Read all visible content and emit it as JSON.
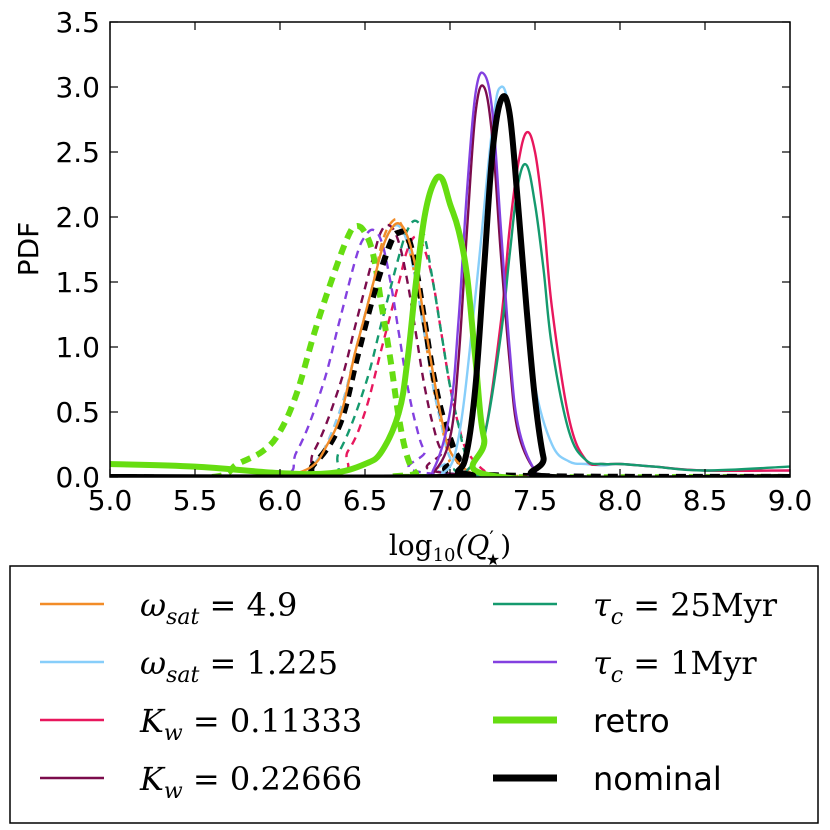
{
  "chart_data": {
    "type": "line",
    "title": "",
    "xlabel": "log10(Q'★)",
    "xlabel_parts": {
      "base": "log",
      "sub": "10",
      "open": "(Q",
      "prime": "′",
      "star": "★",
      "close": ")"
    },
    "ylabel": "PDF",
    "xlim": [
      5.0,
      9.0
    ],
    "ylim": [
      0.0,
      3.5
    ],
    "xticks": [
      "5.0",
      "5.5",
      "6.0",
      "6.5",
      "7.0",
      "7.5",
      "8.0",
      "8.5",
      "9.0"
    ],
    "yticks": [
      "0.0",
      "0.5",
      "1.0",
      "1.5",
      "2.0",
      "2.5",
      "3.0",
      "3.5"
    ],
    "grid": false,
    "legend_position": "below",
    "series": [
      {
        "name": "ω_sat = 4.9",
        "label_main": "ω",
        "label_sub": "sat",
        "label_value": " = 4.9",
        "color": "#f28c28",
        "style": "solid",
        "weight": "thin",
        "x": [
          5.0,
          6.0,
          6.3,
          6.45,
          6.55,
          6.6,
          6.65,
          6.7,
          6.75,
          6.8,
          6.85,
          6.9,
          6.95,
          7.0,
          7.1,
          7.2,
          7.3,
          9.0
        ],
        "y": [
          0.0,
          0.0,
          0.3,
          1.0,
          1.5,
          1.75,
          1.9,
          1.95,
          1.85,
          1.6,
          1.2,
          0.8,
          0.45,
          0.2,
          0.05,
          0.0,
          0.0,
          0.0
        ]
      },
      {
        "name": "ω_sat = 1.225",
        "label_main": "ω",
        "label_sub": "sat",
        "label_value": " = 1.225",
        "color": "#87cefa",
        "style": "solid",
        "weight": "thin",
        "x": [
          5.0,
          6.8,
          6.95,
          7.05,
          7.15,
          7.25,
          7.3,
          7.35,
          7.4,
          7.45,
          7.5,
          7.6,
          7.7,
          7.8,
          7.9,
          8.0,
          8.2,
          8.5,
          9.0
        ],
        "y": [
          0.0,
          0.0,
          0.02,
          0.3,
          1.4,
          2.7,
          3.0,
          2.8,
          2.1,
          1.3,
          0.7,
          0.25,
          0.12,
          0.1,
          0.09,
          0.1,
          0.08,
          0.05,
          0.05
        ]
      },
      {
        "name": "K_w = 0.11333",
        "label_main": "K",
        "label_sub": "w",
        "label_value": " = 0.11333",
        "color": "#e8175d",
        "style": "solid",
        "weight": "thin",
        "x": [
          5.0,
          6.8,
          7.0,
          7.1,
          7.2,
          7.3,
          7.35,
          7.4,
          7.45,
          7.5,
          7.55,
          7.6,
          7.7,
          7.8,
          7.9,
          8.0,
          8.2,
          8.5,
          9.0
        ],
        "y": [
          0.0,
          0.0,
          0.0,
          0.05,
          0.3,
          1.2,
          1.9,
          2.4,
          2.65,
          2.5,
          2.0,
          1.3,
          0.45,
          0.13,
          0.1,
          0.1,
          0.08,
          0.05,
          0.05
        ]
      },
      {
        "name": "K_w = 0.22666",
        "label_main": "K",
        "label_sub": "w",
        "label_value": " = 0.22666",
        "color": "#7b0c4c",
        "style": "solid",
        "weight": "thin",
        "x": [
          5.0,
          6.8,
          6.9,
          7.0,
          7.05,
          7.1,
          7.15,
          7.2,
          7.25,
          7.3,
          7.35,
          7.4,
          7.5,
          7.6,
          9.0
        ],
        "y": [
          0.0,
          0.0,
          0.03,
          0.3,
          0.9,
          1.9,
          2.8,
          3.0,
          2.6,
          1.7,
          0.9,
          0.35,
          0.05,
          0.0,
          0.0
        ]
      },
      {
        "name": "τ_c = 25Myr",
        "label_main": "τ",
        "label_sub": "c",
        "label_value": " = 25Myr",
        "color": "#159a6e",
        "style": "solid",
        "weight": "thin",
        "x": [
          5.0,
          7.0,
          7.1,
          7.2,
          7.3,
          7.35,
          7.4,
          7.45,
          7.5,
          7.55,
          7.6,
          7.7,
          7.8,
          7.9,
          8.0,
          8.2,
          8.5,
          9.0
        ],
        "y": [
          0.0,
          0.0,
          0.05,
          0.3,
          1.1,
          1.7,
          2.25,
          2.4,
          2.1,
          1.6,
          1.0,
          0.35,
          0.13,
          0.1,
          0.1,
          0.08,
          0.05,
          0.08
        ]
      },
      {
        "name": "τ_c = 1Myr",
        "label_main": "τ",
        "label_sub": "c",
        "label_value": " = 1Myr",
        "color": "#8340e0",
        "style": "solid",
        "weight": "thin",
        "x": [
          5.0,
          6.8,
          6.9,
          7.0,
          7.05,
          7.1,
          7.15,
          7.2,
          7.25,
          7.3,
          7.35,
          7.4,
          7.5,
          7.6,
          9.0
        ],
        "y": [
          0.0,
          0.0,
          0.05,
          0.5,
          1.2,
          2.2,
          2.95,
          3.1,
          2.8,
          1.9,
          1.0,
          0.4,
          0.05,
          0.0,
          0.0
        ]
      },
      {
        "name": "retro",
        "label_main": "retro",
        "label_sub": "",
        "label_value": "",
        "color": "#66dd11",
        "style": "solid",
        "weight": "thick",
        "x": [
          5.0,
          5.5,
          6.0,
          6.3,
          6.5,
          6.6,
          6.7,
          6.75,
          6.8,
          6.85,
          6.9,
          6.95,
          7.0,
          7.05,
          7.1,
          7.15,
          7.2,
          7.3,
          9.0
        ],
        "y": [
          0.1,
          0.08,
          0.03,
          0.03,
          0.1,
          0.2,
          0.5,
          0.9,
          1.5,
          2.0,
          2.25,
          2.3,
          2.1,
          1.9,
          1.55,
          0.9,
          0.3,
          0.0,
          0.0
        ]
      },
      {
        "name": "nominal",
        "label_main": "nominal",
        "label_sub": "",
        "label_value": "",
        "color": "#000000",
        "style": "solid",
        "weight": "thick",
        "x": [
          5.0,
          6.95,
          7.05,
          7.1,
          7.15,
          7.2,
          7.25,
          7.3,
          7.35,
          7.4,
          7.45,
          7.5,
          7.55,
          7.6,
          9.0
        ],
        "y": [
          0.0,
          0.0,
          0.05,
          0.2,
          0.7,
          1.6,
          2.5,
          2.9,
          2.8,
          2.1,
          1.3,
          0.6,
          0.15,
          0.0,
          0.0
        ]
      }
    ],
    "dashed_series": [
      {
        "name": "ω_sat = 4.9 (dashed)",
        "color": "#f28c28",
        "weight": "thin",
        "x": [
          5.0,
          6.0,
          6.2,
          6.35,
          6.45,
          6.55,
          6.6,
          6.65,
          6.7,
          6.75,
          6.8,
          6.85,
          6.9,
          6.95,
          7.0,
          7.1,
          9.0
        ],
        "y": [
          0.0,
          0.0,
          0.1,
          0.5,
          1.0,
          1.5,
          1.8,
          1.95,
          1.97,
          1.8,
          1.5,
          1.1,
          0.7,
          0.4,
          0.15,
          0.02,
          0.0
        ]
      },
      {
        "name": "ω_sat = 1.225 (dashed)",
        "color": "#87cefa",
        "weight": "thin",
        "x": [
          5.0,
          6.0,
          6.2,
          6.35,
          6.45,
          6.55,
          6.6,
          6.65,
          6.7,
          6.75,
          6.8,
          6.85,
          6.9,
          6.95,
          7.0,
          7.1,
          9.0
        ],
        "y": [
          0.0,
          0.0,
          0.1,
          0.5,
          1.0,
          1.5,
          1.75,
          1.9,
          1.93,
          1.8,
          1.5,
          1.1,
          0.7,
          0.4,
          0.15,
          0.02,
          0.0
        ]
      },
      {
        "name": "K_w = 0.11333 (dashed)",
        "color": "#e8175d",
        "weight": "thin",
        "x": [
          5.0,
          6.25,
          6.4,
          6.5,
          6.6,
          6.7,
          6.75,
          6.8,
          6.85,
          6.9,
          6.95,
          7.0,
          7.05,
          7.1,
          7.2,
          7.3,
          9.0
        ],
        "y": [
          0.0,
          0.0,
          0.2,
          0.5,
          1.0,
          1.5,
          1.75,
          1.85,
          1.75,
          1.5,
          1.1,
          0.7,
          0.4,
          0.2,
          0.05,
          0.0,
          0.0
        ]
      },
      {
        "name": "K_w = 0.22666 (dashed)",
        "color": "#7b0c4c",
        "weight": "thin",
        "x": [
          5.0,
          6.05,
          6.2,
          6.35,
          6.45,
          6.55,
          6.6,
          6.65,
          6.7,
          6.75,
          6.8,
          6.85,
          6.9,
          6.95,
          7.05,
          9.0
        ],
        "y": [
          0.0,
          0.0,
          0.2,
          0.7,
          1.2,
          1.7,
          1.9,
          1.93,
          1.8,
          1.5,
          1.1,
          0.7,
          0.4,
          0.2,
          0.02,
          0.0
        ]
      },
      {
        "name": "τ_c = 25Myr (dashed)",
        "color": "#159a6e",
        "weight": "thin",
        "x": [
          5.0,
          6.2,
          6.35,
          6.5,
          6.6,
          6.7,
          6.75,
          6.8,
          6.85,
          6.9,
          6.95,
          7.0,
          7.05,
          7.1,
          7.2,
          9.0
        ],
        "y": [
          0.0,
          0.0,
          0.2,
          0.7,
          1.2,
          1.7,
          1.9,
          1.97,
          1.85,
          1.5,
          1.1,
          0.7,
          0.4,
          0.15,
          0.02,
          0.0
        ]
      },
      {
        "name": "τ_c = 1Myr (dashed)",
        "color": "#8340e0",
        "weight": "thin",
        "x": [
          5.0,
          5.95,
          6.1,
          6.25,
          6.35,
          6.45,
          6.5,
          6.55,
          6.6,
          6.65,
          6.7,
          6.75,
          6.8,
          6.85,
          6.95,
          9.0
        ],
        "y": [
          0.0,
          0.0,
          0.2,
          0.7,
          1.2,
          1.7,
          1.85,
          1.9,
          1.8,
          1.5,
          1.1,
          0.7,
          0.4,
          0.2,
          0.02,
          0.0
        ]
      },
      {
        "name": "retro (dashed)",
        "color": "#66dd11",
        "weight": "thick",
        "x": [
          5.0,
          5.6,
          5.75,
          5.9,
          6.0,
          6.1,
          6.2,
          6.3,
          6.4,
          6.45,
          6.5,
          6.55,
          6.6,
          6.65,
          6.7,
          6.75,
          6.8,
          6.85,
          9.0
        ],
        "y": [
          0.0,
          0.0,
          0.1,
          0.2,
          0.35,
          0.65,
          1.1,
          1.5,
          1.85,
          1.93,
          1.88,
          1.7,
          1.3,
          0.9,
          0.45,
          0.15,
          0.03,
          0.0,
          0.0
        ]
      },
      {
        "name": "nominal (dashed)",
        "color": "#000000",
        "weight": "thick",
        "x": [
          5.0,
          6.05,
          6.2,
          6.35,
          6.45,
          6.55,
          6.65,
          6.7,
          6.75,
          6.8,
          6.85,
          6.9,
          6.95,
          7.0,
          7.05,
          7.15,
          9.0
        ],
        "y": [
          0.0,
          0.0,
          0.1,
          0.4,
          0.9,
          1.4,
          1.8,
          1.88,
          1.85,
          1.6,
          1.2,
          0.8,
          0.5,
          0.3,
          0.15,
          0.02,
          0.0
        ]
      }
    ]
  }
}
